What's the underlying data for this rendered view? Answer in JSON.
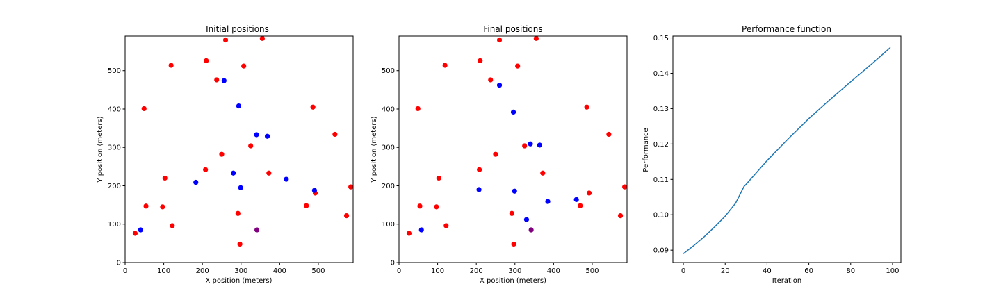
{
  "chart_data": [
    {
      "type": "scatter",
      "title": "Initial positions",
      "xlabel": "X position (meters)",
      "ylabel": "Y position (meters)",
      "xlim": [
        0,
        590
      ],
      "ylim": [
        0,
        590
      ],
      "xticks": [
        0,
        100,
        200,
        300,
        400,
        500
      ],
      "yticks": [
        0,
        100,
        200,
        300,
        400,
        500
      ],
      "grid": false,
      "series": [
        {
          "color": "#ff0000",
          "points": [
            [
              26,
              76
            ],
            [
              49,
              401
            ],
            [
              54,
              147
            ],
            [
              97,
              145
            ],
            [
              103,
              220
            ],
            [
              119,
              514
            ],
            [
              122,
              96
            ],
            [
              208,
              242
            ],
            [
              210,
              526
            ],
            [
              237,
              476
            ],
            [
              250,
              282
            ],
            [
              260,
              580
            ],
            [
              292,
              128
            ],
            [
              297,
              48
            ],
            [
              307,
              512
            ],
            [
              325,
              304
            ],
            [
              355,
              584
            ],
            [
              372,
              233
            ],
            [
              469,
              148
            ],
            [
              486,
              405
            ],
            [
              492,
              181
            ],
            [
              543,
              334
            ],
            [
              573,
              122
            ],
            [
              584,
              197
            ]
          ]
        },
        {
          "color": "#0000ff",
          "points": [
            [
              40,
              85
            ],
            [
              183,
              209
            ],
            [
              256,
              474
            ],
            [
              280,
              233
            ],
            [
              294,
              408
            ],
            [
              299,
              195
            ],
            [
              340,
              333
            ],
            [
              368,
              329
            ],
            [
              417,
              217
            ],
            [
              490,
              188
            ]
          ]
        },
        {
          "color": "#800080",
          "points": [
            [
              341,
              85
            ]
          ]
        }
      ]
    },
    {
      "type": "scatter",
      "title": "Final positions",
      "xlabel": "X position (meters)",
      "ylabel": "Y position (meters)",
      "xlim": [
        0,
        590
      ],
      "ylim": [
        0,
        590
      ],
      "xticks": [
        0,
        100,
        200,
        300,
        400,
        500
      ],
      "yticks": [
        0,
        100,
        200,
        300,
        400,
        500
      ],
      "grid": false,
      "series": [
        {
          "color": "#ff0000",
          "points": [
            [
              26,
              76
            ],
            [
              49,
              401
            ],
            [
              54,
              147
            ],
            [
              97,
              145
            ],
            [
              103,
              220
            ],
            [
              119,
              514
            ],
            [
              122,
              96
            ],
            [
              208,
              242
            ],
            [
              210,
              526
            ],
            [
              237,
              476
            ],
            [
              250,
              282
            ],
            [
              260,
              580
            ],
            [
              292,
              128
            ],
            [
              297,
              48
            ],
            [
              307,
              512
            ],
            [
              325,
              304
            ],
            [
              355,
              584
            ],
            [
              372,
              233
            ],
            [
              469,
              148
            ],
            [
              486,
              405
            ],
            [
              492,
              181
            ],
            [
              543,
              334
            ],
            [
              573,
              122
            ],
            [
              584,
              197
            ]
          ]
        },
        {
          "color": "#0000ff",
          "points": [
            [
              58,
              85
            ],
            [
              207,
              190
            ],
            [
              260,
              462
            ],
            [
              296,
              392
            ],
            [
              299,
              186
            ],
            [
              330,
              112
            ],
            [
              340,
              309
            ],
            [
              364,
              306
            ],
            [
              385,
              159
            ],
            [
              459,
              164
            ]
          ]
        },
        {
          "color": "#800080",
          "points": [
            [
              342,
              85
            ]
          ]
        }
      ]
    },
    {
      "type": "line",
      "title": "Performance function",
      "xlabel": "Iteration",
      "ylabel": "Performance",
      "xlim": [
        -5,
        104
      ],
      "ylim": [
        0.0865,
        0.1505
      ],
      "xticks": [
        0,
        20,
        40,
        60,
        80,
        100
      ],
      "yticks": [
        0.09,
        0.1,
        0.11,
        0.12,
        0.13,
        0.14,
        0.15
      ],
      "grid": false,
      "series": [
        {
          "color": "#1f77b4",
          "x": [
            0,
            5,
            10,
            15,
            20,
            25,
            29,
            30,
            40,
            50,
            60,
            70,
            80,
            90,
            99
          ],
          "y": [
            0.089,
            0.0913,
            0.0938,
            0.0966,
            0.0996,
            0.1033,
            0.108,
            0.1086,
            0.1153,
            0.1214,
            0.1272,
            0.1325,
            0.1376,
            0.1426,
            0.1473
          ]
        }
      ]
    }
  ]
}
